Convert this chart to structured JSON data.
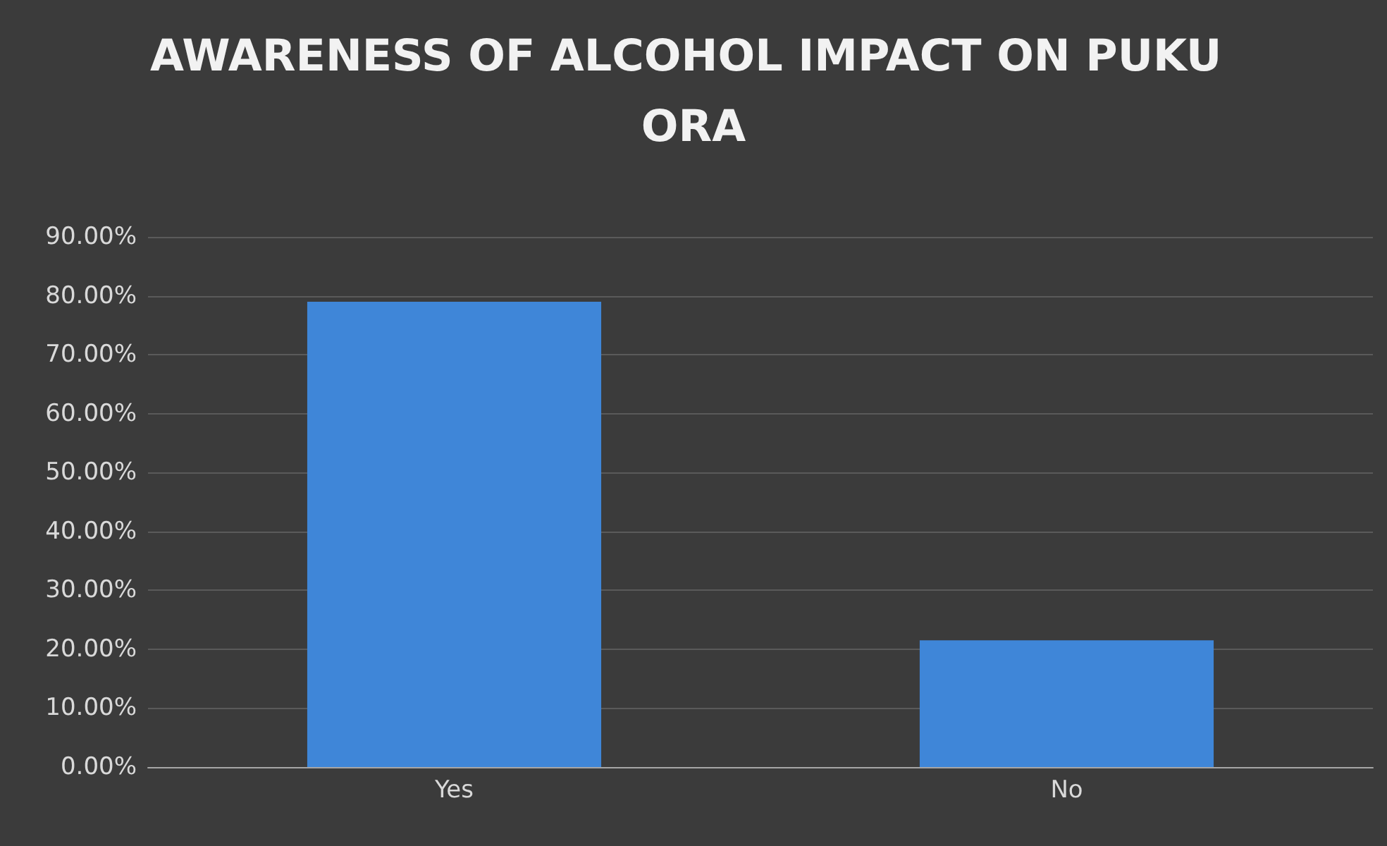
{
  "chart_data": {
    "type": "bar",
    "title": "AWARENESS OF ALCOHOL IMPACT ON PUKU ORA",
    "categories": [
      "Yes",
      "No"
    ],
    "values": [
      79,
      21.5
    ],
    "color": "#3f86d8",
    "ylim": [
      0,
      90
    ],
    "yticks": [
      {
        "value": 0,
        "label": "0.00%"
      },
      {
        "value": 10,
        "label": "10.00%"
      },
      {
        "value": 20,
        "label": "20.00%"
      },
      {
        "value": 30,
        "label": "30.00%"
      },
      {
        "value": 40,
        "label": "40.00%"
      },
      {
        "value": 50,
        "label": "50.00%"
      },
      {
        "value": 60,
        "label": "60.00%"
      },
      {
        "value": 70,
        "label": "70.00%"
      },
      {
        "value": 80,
        "label": "80.00%"
      },
      {
        "value": 90,
        "label": "90.00%"
      }
    ],
    "grid": "y"
  }
}
